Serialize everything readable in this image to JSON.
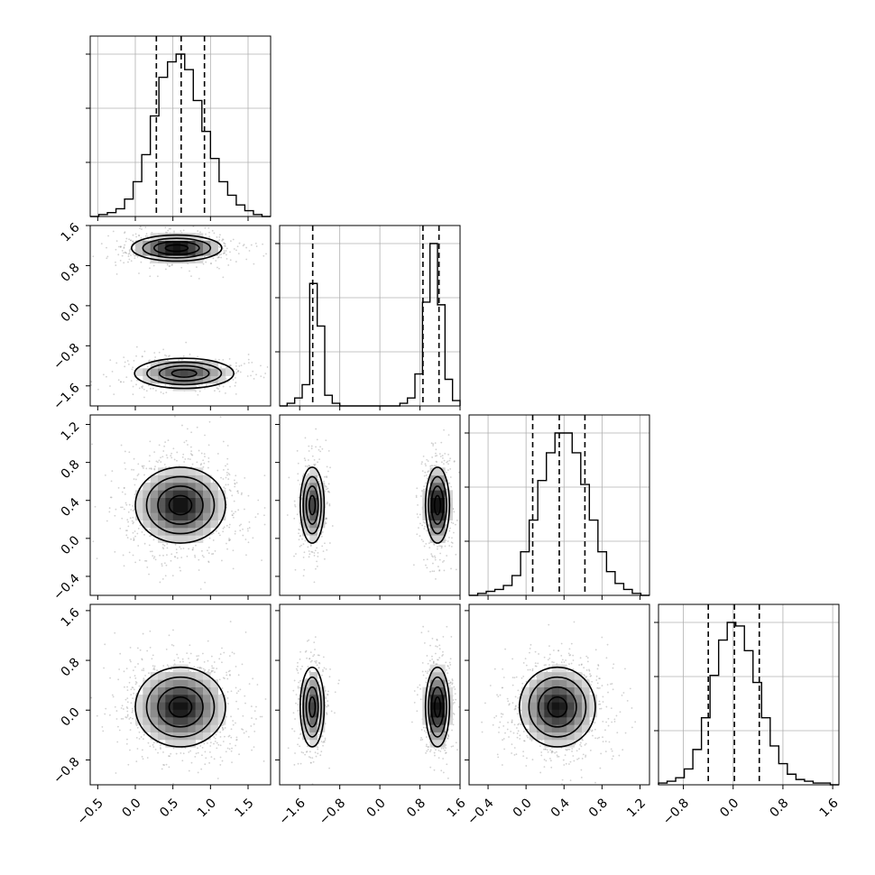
{
  "chart_data": {
    "type": "corner",
    "title": "",
    "parameters": 4,
    "colors": {
      "ink": "#000000",
      "grid": "#b0b0b0",
      "scatter": "#9a9a9a"
    },
    "ranges": [
      [
        -0.6,
        1.8
      ],
      [
        -2.0,
        1.6
      ],
      [
        -0.6,
        1.3
      ],
      [
        -1.2,
        1.7
      ]
    ],
    "ticks": [
      [
        -0.5,
        0.0,
        0.5,
        1.0,
        1.5
      ],
      [
        -1.6,
        -0.8,
        0.0,
        0.8,
        1.6
      ],
      [
        -0.4,
        0.0,
        0.4,
        0.8,
        1.2
      ],
      [
        -0.8,
        0.0,
        0.8,
        1.6
      ]
    ],
    "tick_labels": [
      [
        "−0.5",
        "0.0",
        "0.5",
        "1.0",
        "1.5"
      ],
      [
        "−1.6",
        "−0.8",
        "0.0",
        "0.8",
        "1.6"
      ],
      [
        "−0.4",
        "0.0",
        "0.4",
        "0.8",
        "1.2"
      ],
      [
        "−0.8",
        "0.0",
        "0.8",
        "1.6"
      ]
    ],
    "quantiles": [
      [
        0.28,
        0.61,
        0.92
      ],
      [
        -1.34,
        0.86,
        1.18
      ],
      [
        0.07,
        0.35,
        0.62
      ],
      [
        -0.4,
        0.02,
        0.42
      ]
    ],
    "histograms": [
      {
        "edges": [
          -0.6,
          1.8
        ],
        "counts": [
          0,
          1,
          2,
          4,
          9,
          18,
          32,
          52,
          72,
          80,
          84,
          76,
          60,
          44,
          30,
          18,
          11,
          6,
          3,
          1,
          0
        ]
      },
      {
        "edges": [
          -2.0,
          1.6
        ],
        "counts": [
          0,
          1,
          3,
          8,
          46,
          30,
          4,
          1,
          0,
          0,
          0,
          0,
          0,
          0,
          0,
          0,
          1,
          3,
          12,
          39,
          61,
          38,
          10,
          2
        ]
      },
      {
        "edges": [
          -0.6,
          1.3
        ],
        "counts": [
          0,
          1,
          2,
          3,
          5,
          10,
          22,
          38,
          58,
          72,
          82,
          82,
          72,
          56,
          38,
          22,
          12,
          6,
          3,
          1,
          0
        ]
      },
      {
        "edges": [
          -1.2,
          1.7
        ],
        "counts": [
          1,
          2,
          4,
          9,
          20,
          38,
          62,
          82,
          92,
          90,
          76,
          58,
          38,
          22,
          12,
          6,
          3,
          2,
          1,
          1,
          0
        ]
      }
    ],
    "joint_densities": [
      {
        "row": 1,
        "col": 0,
        "components": [
          {
            "mx": 0.55,
            "my": 1.15,
            "sx": 0.3,
            "sy": 0.13,
            "w": 0.6
          },
          {
            "mx": 0.65,
            "my": -1.35,
            "sx": 0.33,
            "sy": 0.15,
            "w": 0.4
          }
        ]
      },
      {
        "row": 2,
        "col": 0,
        "components": [
          {
            "mx": 0.6,
            "my": 0.35,
            "sx": 0.3,
            "sy": 0.2,
            "w": 1.0
          }
        ]
      },
      {
        "row": 2,
        "col": 1,
        "components": [
          {
            "mx": -1.35,
            "my": 0.35,
            "sx": 0.12,
            "sy": 0.2,
            "w": 0.4
          },
          {
            "mx": 1.15,
            "my": 0.35,
            "sx": 0.12,
            "sy": 0.2,
            "w": 0.6
          }
        ]
      },
      {
        "row": 3,
        "col": 0,
        "components": [
          {
            "mx": 0.6,
            "my": 0.05,
            "sx": 0.3,
            "sy": 0.32,
            "w": 1.0
          }
        ]
      },
      {
        "row": 3,
        "col": 1,
        "components": [
          {
            "mx": -1.35,
            "my": 0.05,
            "sx": 0.12,
            "sy": 0.32,
            "w": 0.4
          },
          {
            "mx": 1.15,
            "my": 0.05,
            "sx": 0.12,
            "sy": 0.32,
            "w": 0.6
          }
        ]
      },
      {
        "row": 3,
        "col": 2,
        "components": [
          {
            "mx": 0.33,
            "my": 0.05,
            "sx": 0.2,
            "sy": 0.32,
            "w": 1.0
          }
        ]
      }
    ],
    "xlabel": "",
    "ylabel": "",
    "grid": true,
    "legend": "none"
  }
}
